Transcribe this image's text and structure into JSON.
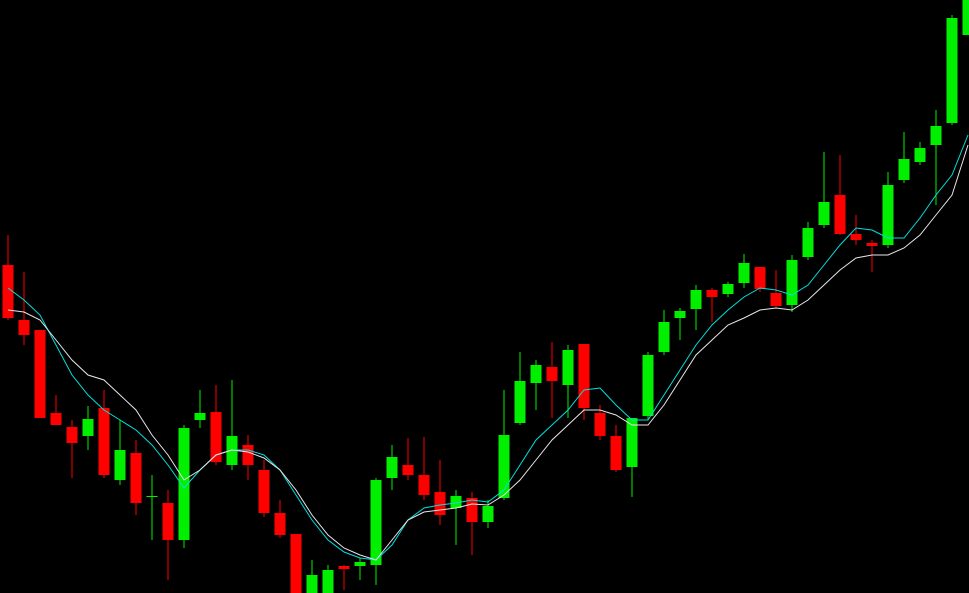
{
  "chart_data": {
    "type": "candlestick",
    "ylim": [
      0,
      593
    ],
    "up_color": "#00f000",
    "down_color": "#ff0000",
    "open": [
      328,
      273,
      263,
      180,
      166,
      157,
      185,
      113,
      140,
      96,
      90,
      53,
      173,
      181,
      128,
      148,
      123,
      80,
      59,
      0,
      0,
      27,
      27,
      28,
      115,
      128,
      118,
      101,
      85,
      95,
      71,
      95,
      170,
      210,
      226,
      208,
      249,
      180,
      157,
      126,
      177,
      241,
      275,
      284,
      303,
      299,
      310,
      326,
      300,
      288,
      336,
      368,
      398,
      359,
      350,
      348,
      413,
      431,
      448,
      470,
      558
    ],
    "high": [
      358,
      321,
      263,
      198,
      173,
      187,
      203,
      173,
      153,
      118,
      103,
      168,
      203,
      208,
      213,
      158,
      133,
      93,
      59,
      33,
      28,
      28,
      35,
      115,
      148,
      155,
      156,
      133,
      103,
      101,
      93,
      203,
      241,
      233,
      251,
      248,
      249,
      188,
      168,
      175,
      241,
      283,
      285,
      308,
      305,
      311,
      339,
      326,
      323,
      338,
      371,
      441,
      438,
      378,
      353,
      421,
      461,
      451,
      483,
      578,
      593
    ],
    "low": [
      273,
      248,
      175,
      168,
      115,
      143,
      115,
      108,
      78,
      53,
      13,
      45,
      165,
      128,
      123,
      113,
      76,
      55,
      0,
      0,
      0,
      3,
      13,
      8,
      103,
      113,
      93,
      68,
      48,
      38,
      65,
      93,
      168,
      183,
      175,
      175,
      173,
      153,
      121,
      96,
      173,
      238,
      253,
      263,
      271,
      296,
      305,
      301,
      285,
      281,
      333,
      365,
      358,
      348,
      321,
      345,
      410,
      428,
      388,
      468,
      558
    ],
    "close": [
      275,
      258,
      175,
      168,
      150,
      174,
      118,
      143,
      90,
      97,
      53,
      165,
      180,
      131,
      157,
      128,
      80,
      58,
      0,
      18,
      23,
      24,
      31,
      113,
      136,
      118,
      98,
      78,
      97,
      71,
      87,
      158,
      212,
      228,
      212,
      243,
      185,
      157,
      123,
      175,
      238,
      271,
      282,
      303,
      296,
      309,
      330,
      304,
      287,
      333,
      365,
      391,
      359,
      353,
      347,
      408,
      434,
      445,
      467,
      575,
      593
    ],
    "lines": [
      {
        "color": "#00e0e0",
        "values": [
          305,
          293,
          278,
          248,
          218,
          198,
          183,
          173,
          163,
          148,
          128,
          105,
          123,
          138,
          143,
          143,
          138,
          123,
          98,
          73,
          53,
          41,
          35,
          33,
          48,
          73,
          85,
          88,
          90,
          93,
          91,
          103,
          128,
          153,
          168,
          183,
          203,
          205,
          188,
          173,
          173,
          198,
          223,
          248,
          268,
          283,
          296,
          305,
          303,
          298,
          308,
          328,
          348,
          365,
          363,
          355,
          355,
          375,
          398,
          418,
          458
        ]
      },
      {
        "color": "#e8e8e8",
        "values": [
          283,
          281,
          273,
          253,
          233,
          218,
          213,
          198,
          183,
          158,
          138,
          113,
          123,
          138,
          143,
          141,
          135,
          123,
          103,
          78,
          58,
          45,
          38,
          33,
          53,
          73,
          81,
          83,
          85,
          89,
          88,
          98,
          113,
          133,
          153,
          168,
          183,
          183,
          178,
          168,
          168,
          188,
          213,
          238,
          253,
          268,
          275,
          283,
          285,
          283,
          293,
          308,
          323,
          335,
          338,
          338,
          345,
          358,
          378,
          398,
          448
        ]
      }
    ]
  }
}
